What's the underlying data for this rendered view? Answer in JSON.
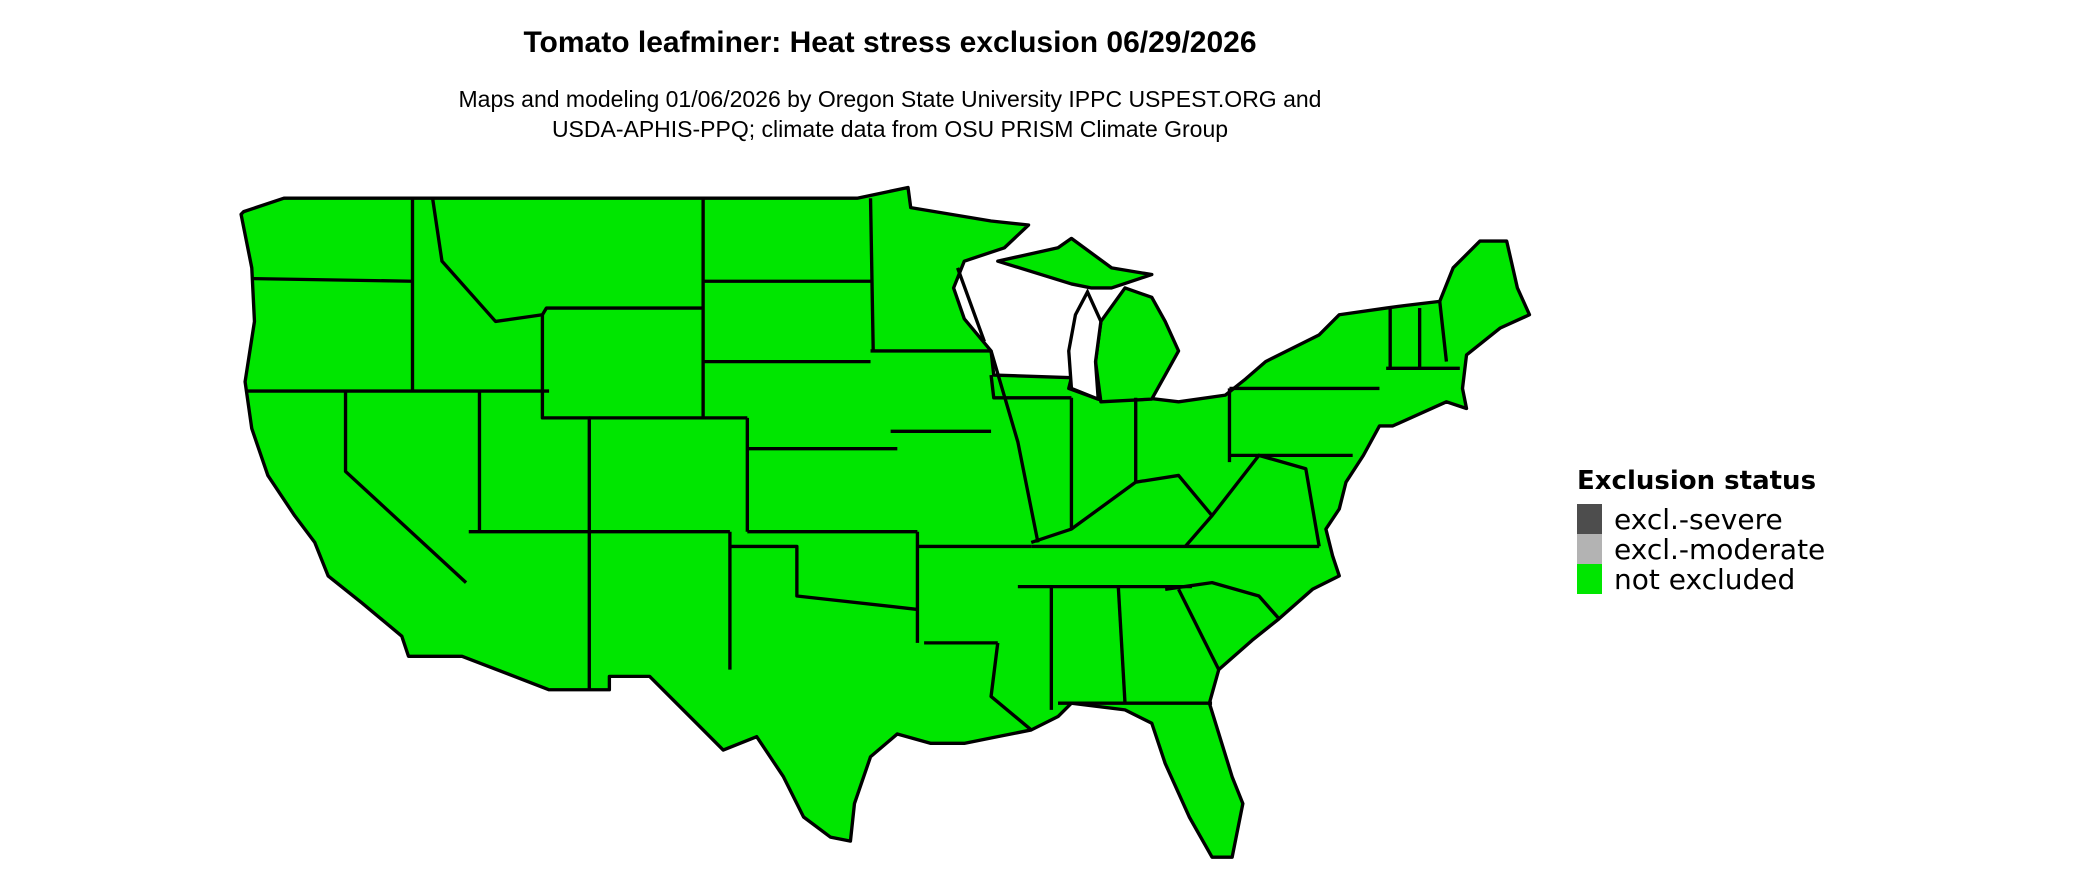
{
  "title": "Tomato leafminer: Heat stress exclusion 06/29/2026",
  "subtitle_lines": [
    "Maps and modeling 01/06/2026 by Oregon State University IPPC USPEST.ORG and",
    "USDA-APHIS-PPQ; climate data from OSU PRISM Climate Group"
  ],
  "map": {
    "region": "Contiguous United States",
    "fill_status": "not excluded",
    "fill_color": "#00e600",
    "border_color": "#000000"
  },
  "legend": {
    "title": "Exclusion status",
    "items": [
      {
        "label": "excl.-severe",
        "color": "#4d4d4d"
      },
      {
        "label": "excl.-moderate",
        "color": "#b3b3b3"
      },
      {
        "label": "not excluded",
        "color": "#00e600"
      }
    ]
  }
}
